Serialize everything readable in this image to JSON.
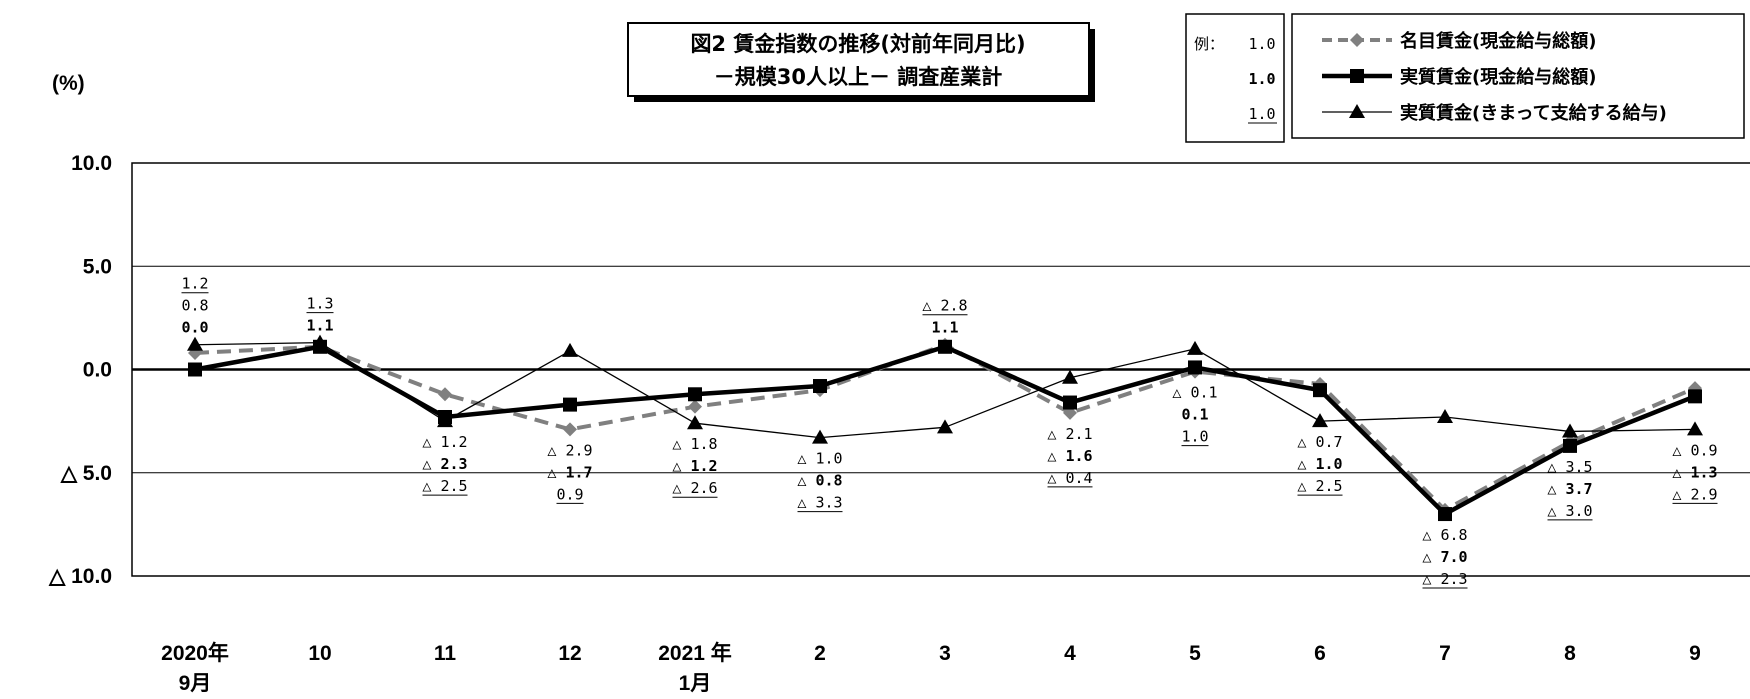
{
  "chart_data": {
    "type": "line",
    "title": "図2 賃金指数の推移(対前年同月比)",
    "subtitle": "－規模30人以上－ 調査産業計",
    "ylabel": "(%)",
    "ylim": [
      -10,
      10
    ],
    "yticks": [
      10,
      5,
      0,
      -5,
      -10
    ],
    "ytick_labels": [
      "10.0",
      "5.0",
      "0.0",
      "△ 5.0",
      "△ 10.0"
    ],
    "categories": [
      "2020年 9月",
      "10",
      "11",
      "12",
      "2021年 1月",
      "2",
      "3",
      "4",
      "5",
      "6",
      "7",
      "8",
      "9"
    ],
    "category_lines": [
      [
        "2020年",
        "9月"
      ],
      [
        "10"
      ],
      [
        "11"
      ],
      [
        "12"
      ],
      [
        "2021 年",
        "1月"
      ],
      [
        "2"
      ],
      [
        "3"
      ],
      [
        "4"
      ],
      [
        "5"
      ],
      [
        "6"
      ],
      [
        "7"
      ],
      [
        "8"
      ],
      [
        "9"
      ]
    ],
    "series": [
      {
        "name": "名目賃金(現金給与総額)",
        "values": [
          0.8,
          1.1,
          -1.2,
          -2.9,
          -1.8,
          -1.0,
          1.2,
          -2.1,
          -0.1,
          -0.7,
          -6.8,
          -3.5,
          -0.9
        ],
        "labels": [
          "0.8",
          "",
          "△ 1.2",
          "△ 2.9",
          "△ 1.8",
          "△ 1.0",
          "",
          "△ 2.1",
          "△ 0.1",
          "△ 0.7",
          "△ 6.8",
          "△ 3.5",
          "△ 0.9"
        ],
        "color": "#808080",
        "style": "dashed",
        "marker": "diamond"
      },
      {
        "name": "実質賃金(現金給与総額)",
        "values": [
          0.0,
          1.1,
          -2.3,
          -1.7,
          -1.2,
          -0.8,
          1.1,
          -1.6,
          0.1,
          -1.0,
          -7.0,
          -3.7,
          -1.3
        ],
        "labels": [
          "0.0",
          "1.1",
          "△ 2.3",
          "△ 1.7",
          "△ 1.2",
          "△ 0.8",
          "1.1",
          "△ 1.6",
          "0.1",
          "△ 1.0",
          "△ 7.0",
          "△ 3.7",
          "△ 1.3"
        ],
        "color": "#000000",
        "style": "thick",
        "marker": "square"
      },
      {
        "name": "実質賃金(きまって支給する給与)",
        "values": [
          1.2,
          1.3,
          -2.5,
          0.9,
          -2.6,
          -3.3,
          -2.8,
          -0.4,
          1.0,
          -2.5,
          -2.3,
          -3.0,
          -2.9
        ],
        "labels": [
          "1.2",
          "1.3",
          "△ 2.5",
          "0.9",
          "△ 2.6",
          "△ 3.3",
          "△ 2.8",
          "△ 0.4",
          "1.0",
          "△ 2.5",
          "△ 2.3",
          "△ 3.0",
          "△ 2.9"
        ],
        "color": "#000000",
        "style": "thin",
        "marker": "triangle"
      }
    ],
    "legend": {
      "position": "top-right",
      "example_prefix": "例：",
      "examples": [
        "1.0",
        "1.0",
        "1.0"
      ]
    },
    "grid": true
  }
}
